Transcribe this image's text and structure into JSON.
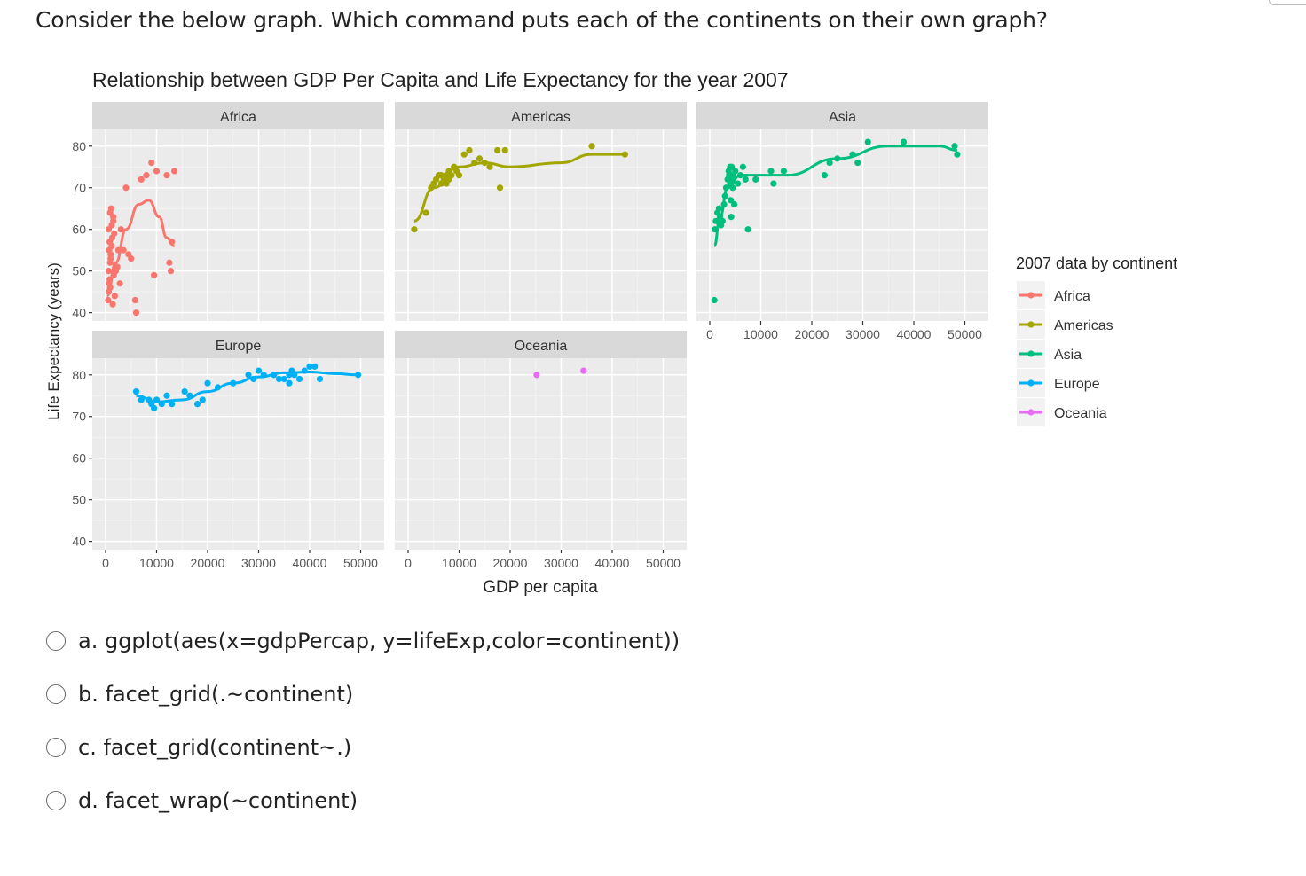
{
  "question": "Consider the below graph. Which command puts each of the continents on their own graph?",
  "chart_data": {
    "type": "scatter",
    "title": "Relationship between GDP Per Capita and Life Expectancy for the year 2007",
    "xlabel": "GDP per capita",
    "ylabel": "Life Expectancy (years)",
    "xlim": [
      0,
      52000
    ],
    "ylim": [
      38,
      84
    ],
    "x_ticks": [
      "0",
      "10000",
      "20000",
      "30000",
      "40000",
      "50000"
    ],
    "y_ticks": [
      "40",
      "50",
      "60",
      "70",
      "80"
    ],
    "legend_title": "2007 data by continent",
    "legend_position": "right",
    "grid": true,
    "series": [
      {
        "name": "Africa",
        "color": "#F8766D",
        "points": [
          [
            500,
            43
          ],
          [
            600,
            45
          ],
          [
            700,
            47
          ],
          [
            800,
            48
          ],
          [
            600,
            50
          ],
          [
            900,
            52
          ],
          [
            1000,
            54
          ],
          [
            700,
            55
          ],
          [
            1200,
            56
          ],
          [
            800,
            57
          ],
          [
            1300,
            58
          ],
          [
            600,
            60
          ],
          [
            1500,
            62
          ],
          [
            900,
            64
          ],
          [
            1100,
            65
          ],
          [
            1400,
            42
          ],
          [
            1800,
            44
          ],
          [
            900,
            46
          ],
          [
            1600,
            49
          ],
          [
            2000,
            50
          ],
          [
            2300,
            51
          ],
          [
            1000,
            53
          ],
          [
            2500,
            55
          ],
          [
            1700,
            59
          ],
          [
            3000,
            60
          ],
          [
            1200,
            61
          ],
          [
            3500,
            55
          ],
          [
            4500,
            54
          ],
          [
            5000,
            53
          ],
          [
            2800,
            47
          ],
          [
            1500,
            63
          ],
          [
            6000,
            40
          ],
          [
            5800,
            43
          ],
          [
            7000,
            72
          ],
          [
            8000,
            73
          ],
          [
            4000,
            70
          ],
          [
            9000,
            76
          ],
          [
            10000,
            74
          ],
          [
            12000,
            73
          ],
          [
            13500,
            74
          ],
          [
            9500,
            49
          ],
          [
            12500,
            52
          ],
          [
            12800,
            50
          ],
          [
            13000,
            57
          ]
        ],
        "trend": [
          [
            300,
            44
          ],
          [
            2000,
            52
          ],
          [
            4000,
            60
          ],
          [
            6500,
            66
          ],
          [
            8500,
            67
          ],
          [
            10500,
            63
          ],
          [
            12000,
            58
          ],
          [
            13500,
            56
          ]
        ]
      },
      {
        "name": "Americas",
        "color": "#A3A500",
        "points": [
          [
            1200,
            60
          ],
          [
            3500,
            64
          ],
          [
            4500,
            70
          ],
          [
            5000,
            71
          ],
          [
            5500,
            72
          ],
          [
            6000,
            73
          ],
          [
            6500,
            71
          ],
          [
            7000,
            72
          ],
          [
            7500,
            73
          ],
          [
            8000,
            72
          ],
          [
            8500,
            73
          ],
          [
            9000,
            75
          ],
          [
            9500,
            74
          ],
          [
            10000,
            73
          ],
          [
            11000,
            78
          ],
          [
            12000,
            79
          ],
          [
            7500,
            71
          ],
          [
            6500,
            73
          ],
          [
            8000,
            74
          ],
          [
            13000,
            76
          ],
          [
            14000,
            77
          ],
          [
            15000,
            76
          ],
          [
            16000,
            75
          ],
          [
            17500,
            79
          ],
          [
            19000,
            79
          ],
          [
            18000,
            70
          ],
          [
            36000,
            80
          ],
          [
            42500,
            78
          ]
        ],
        "trend": [
          [
            1200,
            62
          ],
          [
            5000,
            70
          ],
          [
            10000,
            75
          ],
          [
            15000,
            76
          ],
          [
            20000,
            75
          ],
          [
            30000,
            76
          ],
          [
            36000,
            78
          ],
          [
            43000,
            78
          ]
        ]
      },
      {
        "name": "Asia",
        "color": "#00BF7D",
        "points": [
          [
            900,
            43
          ],
          [
            1000,
            60
          ],
          [
            1200,
            62
          ],
          [
            1500,
            64
          ],
          [
            1800,
            65
          ],
          [
            2000,
            63
          ],
          [
            2200,
            61
          ],
          [
            2500,
            62
          ],
          [
            2800,
            66
          ],
          [
            3000,
            68
          ],
          [
            3200,
            70
          ],
          [
            3500,
            72
          ],
          [
            4000,
            71
          ],
          [
            4500,
            73
          ],
          [
            5000,
            74
          ],
          [
            4000,
            75
          ],
          [
            3800,
            73
          ],
          [
            4200,
            72
          ],
          [
            4500,
            70
          ],
          [
            6000,
            73
          ],
          [
            6500,
            75
          ],
          [
            7000,
            72
          ],
          [
            5500,
            71
          ],
          [
            4200,
            63
          ],
          [
            4800,
            66
          ],
          [
            4100,
            67
          ],
          [
            3700,
            74
          ],
          [
            4300,
            75
          ],
          [
            7500,
            60
          ],
          [
            9000,
            72
          ],
          [
            12000,
            74
          ],
          [
            12500,
            71
          ],
          [
            14500,
            74
          ],
          [
            22500,
            73
          ],
          [
            23500,
            76
          ],
          [
            25000,
            77
          ],
          [
            28000,
            78
          ],
          [
            29000,
            76
          ],
          [
            31000,
            81
          ],
          [
            38000,
            81
          ],
          [
            48000,
            80
          ],
          [
            48500,
            78
          ]
        ],
        "trend": [
          [
            900,
            56
          ],
          [
            2000,
            63
          ],
          [
            3500,
            70
          ],
          [
            6000,
            73
          ],
          [
            10000,
            73
          ],
          [
            15000,
            73
          ],
          [
            25000,
            77
          ],
          [
            35000,
            80
          ],
          [
            45000,
            80
          ],
          [
            48500,
            79
          ]
        ]
      },
      {
        "name": "Europe",
        "color": "#00B0F6",
        "points": [
          [
            6000,
            76
          ],
          [
            7000,
            74
          ],
          [
            8500,
            74
          ],
          [
            9000,
            73
          ],
          [
            9500,
            72
          ],
          [
            10000,
            74
          ],
          [
            11000,
            73
          ],
          [
            12000,
            75
          ],
          [
            13000,
            73
          ],
          [
            15500,
            76
          ],
          [
            16500,
            75
          ],
          [
            18000,
            73
          ],
          [
            19000,
            74
          ],
          [
            20000,
            78
          ],
          [
            22000,
            77
          ],
          [
            25000,
            78
          ],
          [
            28000,
            80
          ],
          [
            29000,
            79
          ],
          [
            30000,
            81
          ],
          [
            31000,
            80
          ],
          [
            33000,
            80
          ],
          [
            34000,
            79
          ],
          [
            35000,
            79
          ],
          [
            36000,
            80
          ],
          [
            36500,
            81
          ],
          [
            37000,
            80
          ],
          [
            38000,
            79
          ],
          [
            39000,
            81
          ],
          [
            40000,
            82
          ],
          [
            41000,
            82
          ],
          [
            36000,
            78
          ],
          [
            42000,
            79
          ],
          [
            49500,
            80
          ]
        ],
        "trend": [
          [
            6000,
            75
          ],
          [
            10000,
            73.5
          ],
          [
            15000,
            74
          ],
          [
            20000,
            76
          ],
          [
            25000,
            78
          ],
          [
            30000,
            79.5
          ],
          [
            35000,
            80.5
          ],
          [
            40000,
            80.7
          ],
          [
            45000,
            80.3
          ],
          [
            49500,
            80
          ]
        ]
      },
      {
        "name": "Oceania",
        "color": "#E76BF3",
        "points": [
          [
            25200,
            80
          ],
          [
            34400,
            81
          ]
        ],
        "trend": []
      }
    ],
    "facets": [
      "Africa",
      "Americas",
      "Asia",
      "Europe",
      "Oceania"
    ]
  },
  "options": [
    {
      "label": "a. ggplot(aes(x=gdpPercap, y=lifeExp,color=continent))"
    },
    {
      "label": "b. facet_grid(.~continent)"
    },
    {
      "label": "c. facet_grid(continent~.)"
    },
    {
      "label": "d. facet_wrap(~continent)"
    }
  ]
}
